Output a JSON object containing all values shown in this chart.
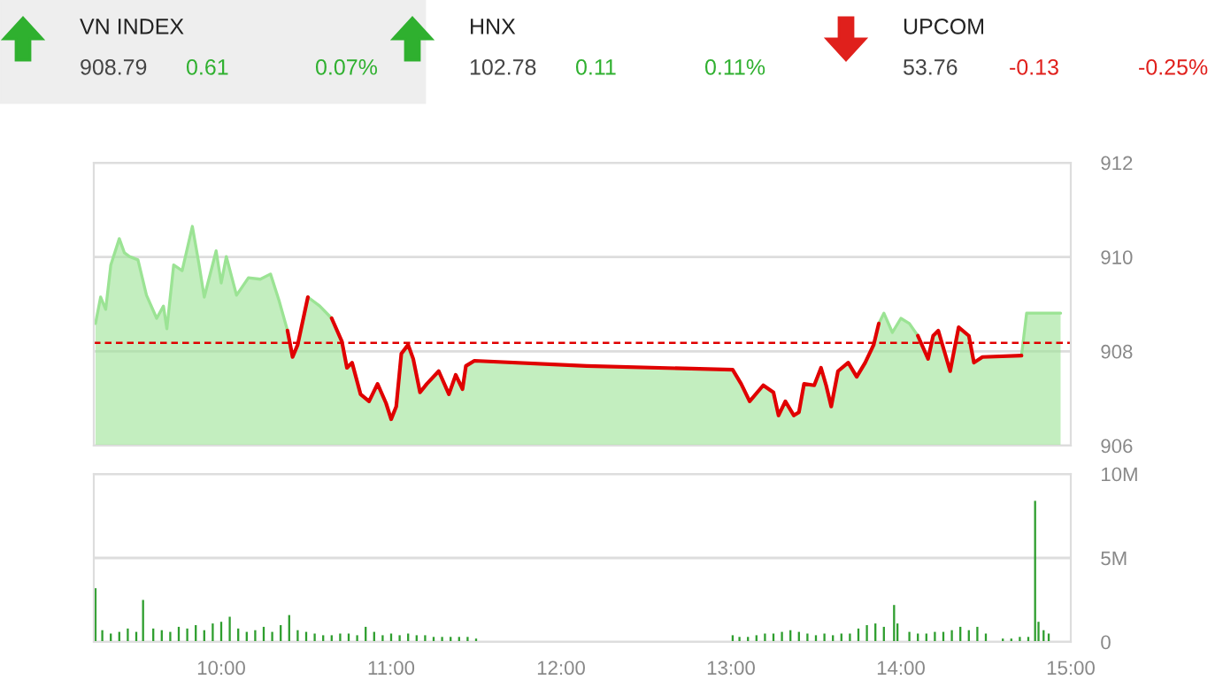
{
  "chart_data": [
    {
      "type": "area",
      "annotations": [
        "VN INDEX",
        "908.79",
        "0.61",
        "0.07%",
        "HNX",
        "102.78",
        "0.11",
        "0.11%",
        "UPCOM",
        "53.76",
        "-0.13",
        "-0.25%"
      ],
      "x": [
        9.26,
        9.29,
        9.32,
        9.35,
        9.4,
        9.43,
        9.46,
        9.51,
        9.56,
        9.62,
        9.66,
        9.68,
        9.72,
        9.77,
        9.83,
        9.87,
        9.9,
        9.97,
        10.0,
        10.03,
        10.09,
        10.16,
        10.23,
        10.29,
        10.34,
        10.39,
        10.42,
        10.45,
        10.51,
        10.58,
        10.65,
        10.71,
        10.74,
        10.77,
        10.82,
        10.87,
        10.92,
        10.97,
        11.0,
        11.03,
        11.06,
        11.1,
        11.13,
        11.17,
        11.21,
        11.28,
        11.34,
        11.38,
        11.42,
        11.44,
        11.49,
        12.15,
        13.01,
        13.06,
        13.11,
        13.19,
        13.25,
        13.28,
        13.32,
        13.37,
        13.4,
        13.43,
        13.49,
        13.53,
        13.56,
        13.59,
        13.63,
        13.69,
        13.74,
        13.79,
        13.84,
        13.87,
        13.9,
        13.95,
        14.0,
        14.05,
        14.1,
        14.16,
        14.19,
        14.22,
        14.26,
        14.29,
        14.34,
        14.4,
        14.43,
        14.48,
        14.71,
        14.74,
        14.94
      ],
      "series": [
        {
          "color": "#9be394",
          "values": [
            908.59,
            909.15,
            908.89,
            909.83,
            910.39,
            910.09,
            910.01,
            909.94,
            909.19,
            908.7,
            908.96,
            908.48,
            909.83,
            909.71,
            910.65,
            909.83,
            909.15,
            910.13,
            909.45,
            910.01,
            909.19,
            909.56,
            909.53,
            909.64,
            909.08,
            908.44,
            907.88,
            908.14,
            909.15,
            908.96,
            908.7,
            908.21,
            907.65,
            907.76,
            907.09,
            906.94,
            907.31,
            906.9,
            906.56,
            906.83,
            907.95,
            908.14,
            907.84,
            907.13,
            907.31,
            907.58,
            907.09,
            907.5,
            907.2,
            907.69,
            907.8,
            907.69,
            907.61,
            907.31,
            906.94,
            907.28,
            907.13,
            906.64,
            906.94,
            906.64,
            906.71,
            907.31,
            907.28,
            907.65,
            907.28,
            906.83,
            907.58,
            907.76,
            907.46,
            907.76,
            908.14,
            908.59,
            908.81,
            908.4,
            908.7,
            908.59,
            908.33,
            907.84,
            908.33,
            908.44,
            907.95,
            907.58,
            908.51,
            908.33,
            907.76,
            907.88,
            907.91,
            908.81,
            908.81
          ]
        },
        {
          "type": "line",
          "color": "#e00000",
          "values": [
            null,
            null,
            null,
            null,
            null,
            null,
            null,
            null,
            null,
            null,
            null,
            null,
            null,
            null,
            null,
            null,
            null,
            null,
            null,
            null,
            null,
            null,
            null,
            null,
            null,
            908.44,
            907.88,
            908.14,
            909.15,
            null,
            908.7,
            908.21,
            907.65,
            907.76,
            907.09,
            906.94,
            907.31,
            906.9,
            906.56,
            906.83,
            907.95,
            908.14,
            907.84,
            907.13,
            907.31,
            907.58,
            907.09,
            907.5,
            907.2,
            907.69,
            907.8,
            907.69,
            907.61,
            907.31,
            906.94,
            907.28,
            907.13,
            906.64,
            906.94,
            906.64,
            906.71,
            907.31,
            907.28,
            907.65,
            907.28,
            906.83,
            907.58,
            907.76,
            907.46,
            907.76,
            908.14,
            908.59,
            null,
            null,
            null,
            null,
            908.33,
            907.84,
            908.33,
            908.44,
            907.95,
            907.58,
            908.51,
            908.33,
            907.76,
            907.88,
            907.91,
            null,
            null
          ]
        }
      ],
      "xlim": [
        9.25,
        15
      ],
      "ylim": [
        906,
        912
      ],
      "yticks": [
        906,
        908,
        910,
        912
      ],
      "tick_labels": "y",
      "grid": "y",
      "ref_lines": [
        {
          "axis": "y",
          "value": 908.18,
          "color": "#e00000",
          "line_style": "dashed"
        }
      ]
    },
    {
      "type": "bar",
      "color": "#2e9e2e",
      "x": [
        9.26,
        9.3,
        9.35,
        9.4,
        9.45,
        9.5,
        9.54,
        9.6,
        9.65,
        9.7,
        9.75,
        9.8,
        9.85,
        9.9,
        9.95,
        10.0,
        10.05,
        10.1,
        10.15,
        10.2,
        10.25,
        10.3,
        10.35,
        10.4,
        10.45,
        10.5,
        10.55,
        10.6,
        10.65,
        10.7,
        10.75,
        10.8,
        10.85,
        10.9,
        10.95,
        11.0,
        11.05,
        11.1,
        11.15,
        11.2,
        11.25,
        11.3,
        11.35,
        11.4,
        11.45,
        11.5,
        13.01,
        13.05,
        13.1,
        13.15,
        13.2,
        13.25,
        13.3,
        13.35,
        13.4,
        13.45,
        13.5,
        13.55,
        13.6,
        13.65,
        13.7,
        13.75,
        13.8,
        13.85,
        13.9,
        13.96,
        13.98,
        14.05,
        14.1,
        14.15,
        14.2,
        14.25,
        14.3,
        14.35,
        14.4,
        14.45,
        14.5,
        14.6,
        14.65,
        14.7,
        14.75,
        14.79,
        14.81,
        14.84,
        14.87
      ],
      "values": [
        3.2,
        0.7,
        0.5,
        0.6,
        0.8,
        0.6,
        2.5,
        0.8,
        0.7,
        0.6,
        0.9,
        0.8,
        1.0,
        0.7,
        1.1,
        1.2,
        1.5,
        0.8,
        0.6,
        0.7,
        0.9,
        0.6,
        1.0,
        1.6,
        0.7,
        0.6,
        0.5,
        0.4,
        0.4,
        0.5,
        0.5,
        0.4,
        0.9,
        0.6,
        0.4,
        0.5,
        0.4,
        0.5,
        0.4,
        0.4,
        0.3,
        0.3,
        0.3,
        0.3,
        0.3,
        0.2,
        0.4,
        0.3,
        0.3,
        0.4,
        0.5,
        0.5,
        0.6,
        0.7,
        0.6,
        0.5,
        0.4,
        0.5,
        0.4,
        0.5,
        0.5,
        0.8,
        1.0,
        1.1,
        0.9,
        2.2,
        1.1,
        0.6,
        0.5,
        0.5,
        0.6,
        0.6,
        0.7,
        0.9,
        0.7,
        0.9,
        0.5,
        0.2,
        0.2,
        0.3,
        0.3,
        8.4,
        1.2,
        0.7,
        0.5
      ],
      "xlim": [
        9.25,
        15
      ],
      "xticks": [
        {
          "value": 10,
          "label": "10:00"
        },
        {
          "value": 11,
          "label": "11:00"
        },
        {
          "value": 12,
          "label": "12:00"
        },
        {
          "value": 13,
          "label": "13:00"
        },
        {
          "value": 14,
          "label": "14:00"
        },
        {
          "value": 15,
          "label": "15:00"
        }
      ],
      "ylim": [
        0,
        10
      ],
      "yticks": [
        0,
        {
          "value": 5,
          "label": "5M"
        },
        {
          "value": 10,
          "label": "10M"
        }
      ],
      "grid": "y"
    }
  ]
}
